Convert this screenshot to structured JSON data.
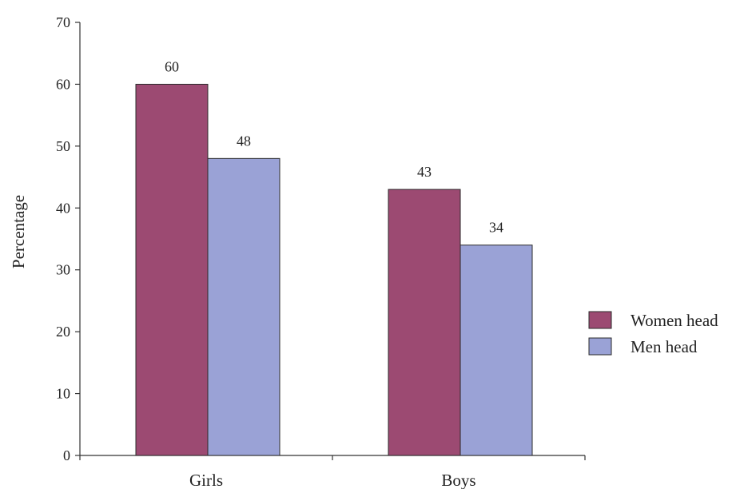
{
  "chart_data": {
    "type": "bar",
    "categories": [
      "Girls",
      "Boys"
    ],
    "series": [
      {
        "name": "Women head",
        "values": [
          60,
          43
        ],
        "color": "#9c4a72"
      },
      {
        "name": "Men head",
        "values": [
          48,
          34
        ],
        "color": "#9aa2d6"
      }
    ],
    "title": "",
    "xlabel": "",
    "ylabel": "Percentage",
    "ylim": [
      0,
      70
    ],
    "yticks": [
      "0",
      "10",
      "20",
      "30",
      "40",
      "50",
      "60",
      "70"
    ],
    "data_labels": [
      [
        "60",
        "43"
      ],
      [
        "48",
        "34"
      ]
    ],
    "grid": false,
    "legend": "right"
  }
}
